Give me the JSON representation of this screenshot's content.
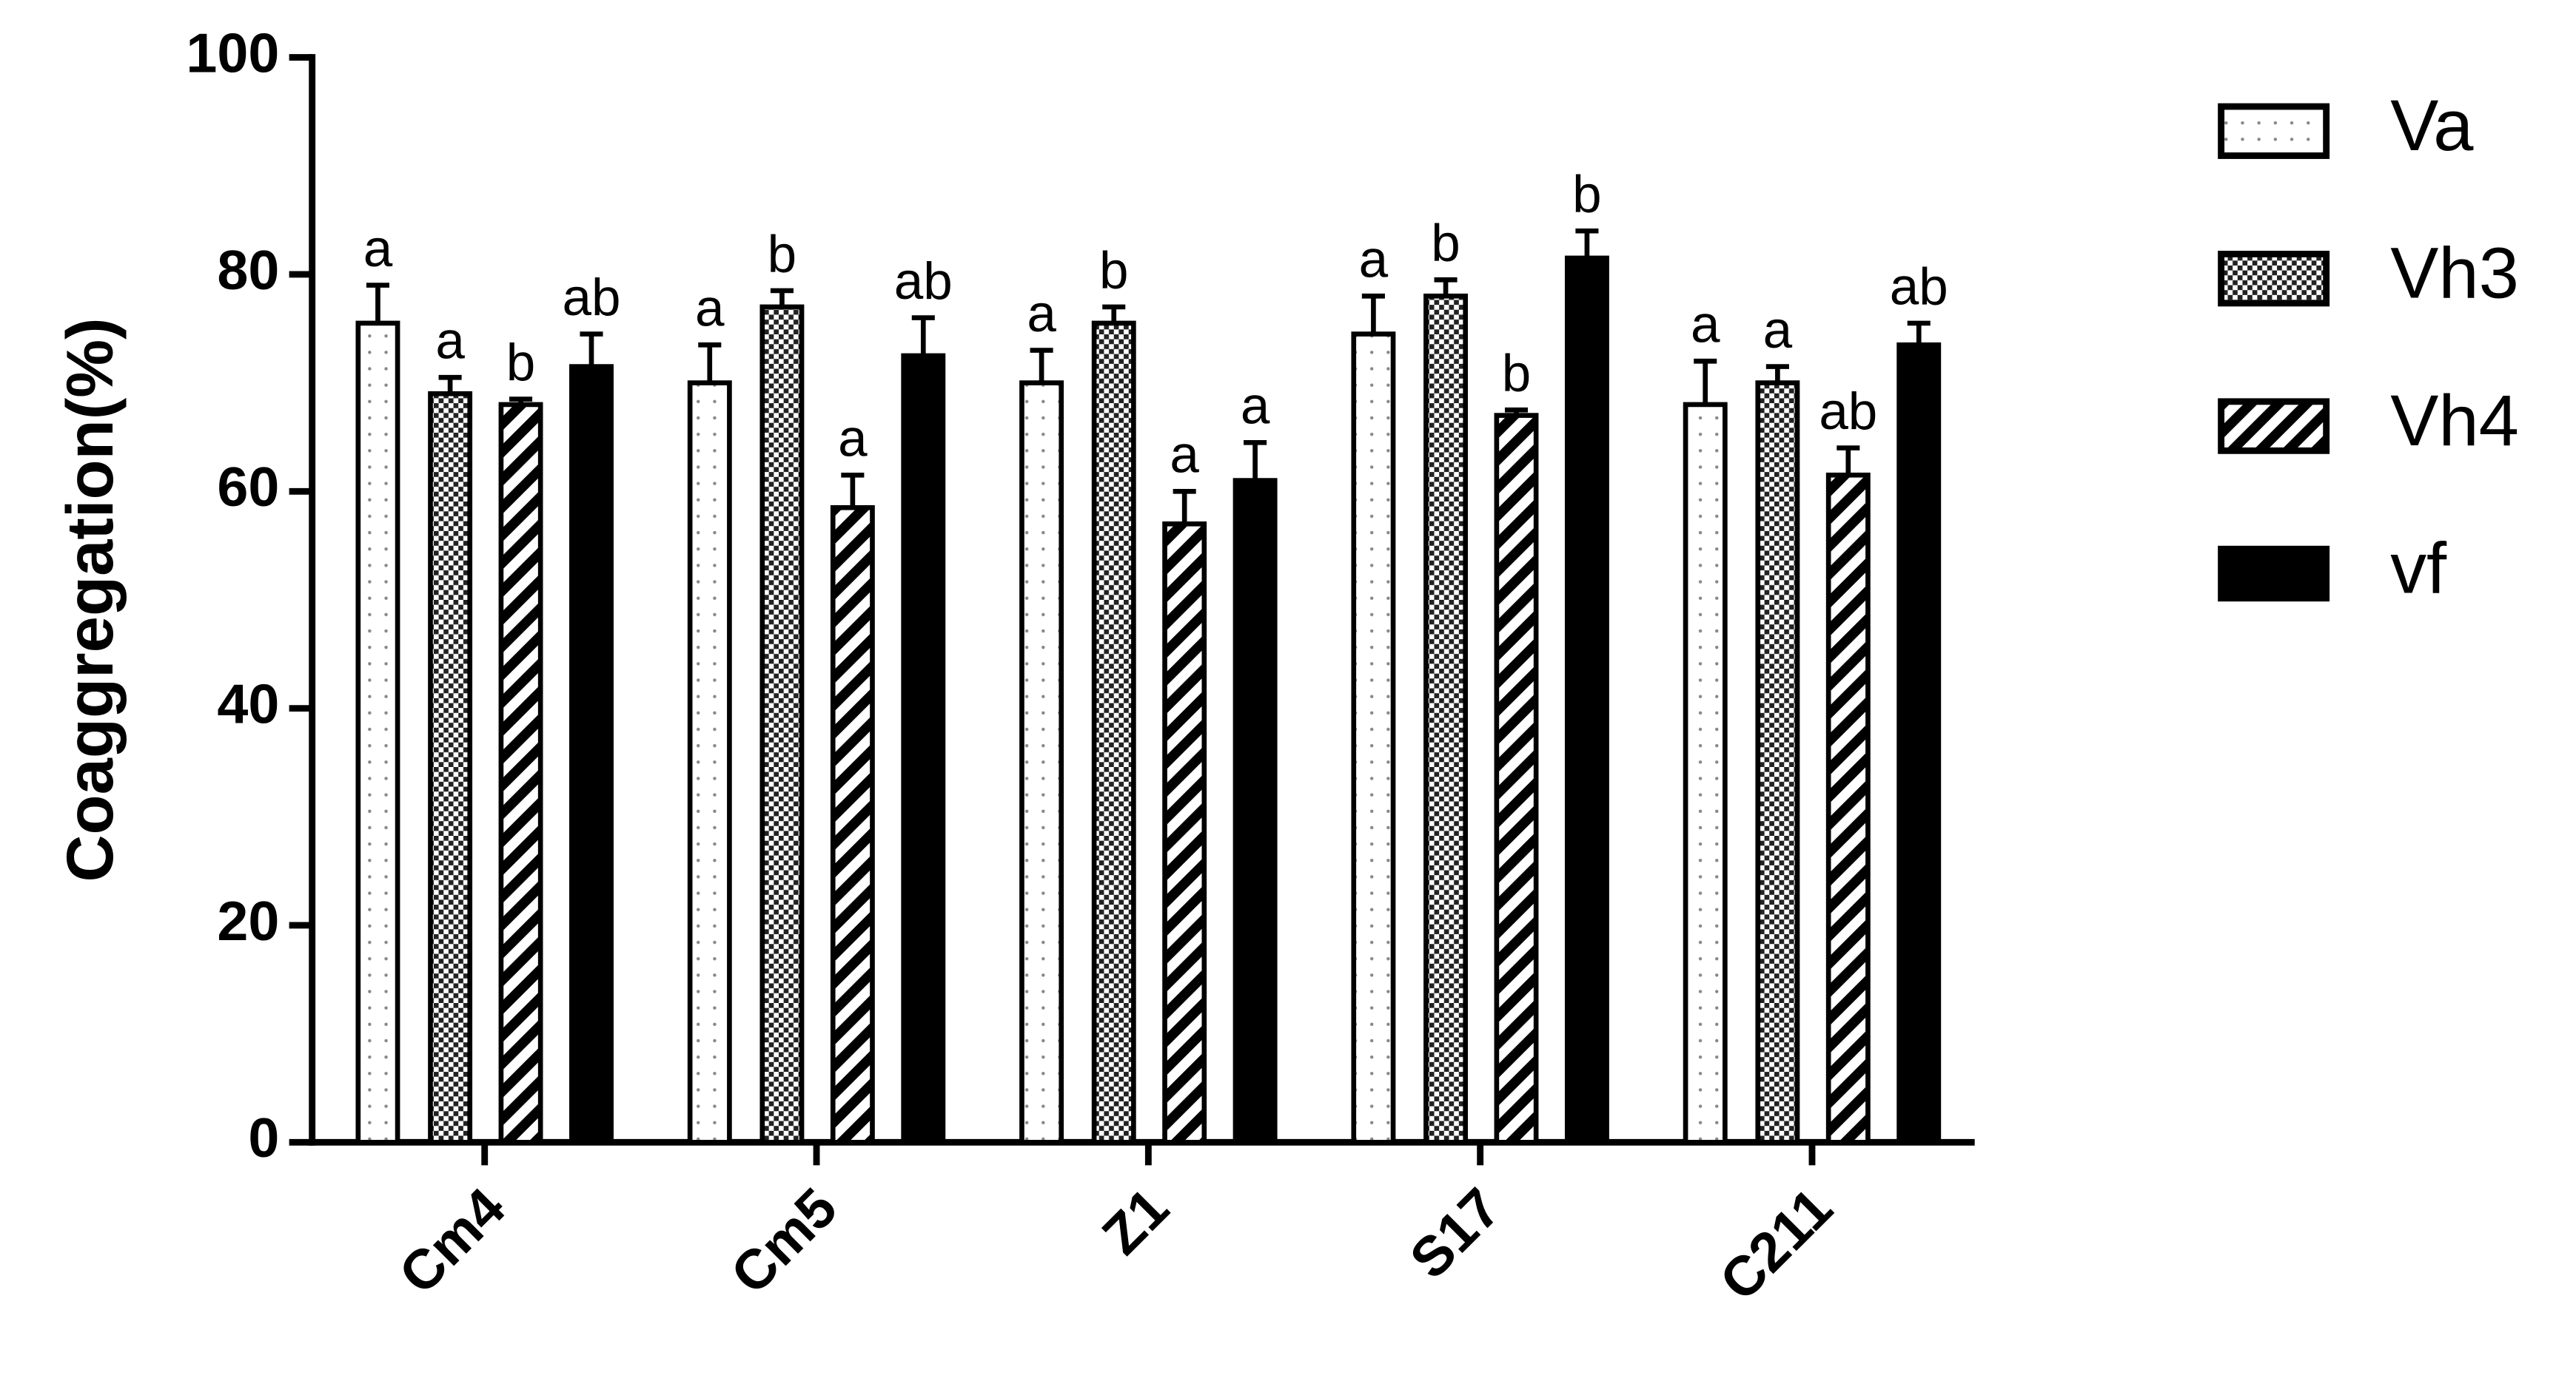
{
  "chart_data": {
    "type": "bar",
    "y_label": "Coaggregation(%)",
    "categories": [
      "Cm4",
      "Cm5",
      "Z1",
      "S17",
      "C211"
    ],
    "series": [
      {
        "name": "Va",
        "values": [
          75.5,
          70,
          70,
          74.5,
          68
        ],
        "errors": [
          3.5,
          3.5,
          3,
          3.5,
          4
        ],
        "letters": [
          "a",
          "a",
          "a",
          "a",
          "a"
        ]
      },
      {
        "name": "Vh3",
        "values": [
          69,
          77,
          75.5,
          78,
          70
        ],
        "errors": [
          1.5,
          1.5,
          1.5,
          1.5,
          1.5
        ],
        "letters": [
          "a",
          "b",
          "b",
          "b",
          "a"
        ]
      },
      {
        "name": "Vh4",
        "values": [
          68,
          58.5,
          57,
          67,
          61.5
        ],
        "errors": [
          0.5,
          3,
          3,
          0.5,
          2.5
        ],
        "letters": [
          "b",
          "a",
          "a",
          "b",
          "ab"
        ]
      },
      {
        "name": "vf",
        "values": [
          71.5,
          72.5,
          61,
          81.5,
          73.5
        ],
        "errors": [
          3,
          3.5,
          3.5,
          2.5,
          2
        ],
        "letters": [
          "ab",
          "ab",
          "a",
          "b",
          "ab"
        ]
      }
    ],
    "ylim": [
      0,
      100
    ],
    "yticks": [
      0,
      20,
      40,
      60,
      80,
      100
    ]
  }
}
